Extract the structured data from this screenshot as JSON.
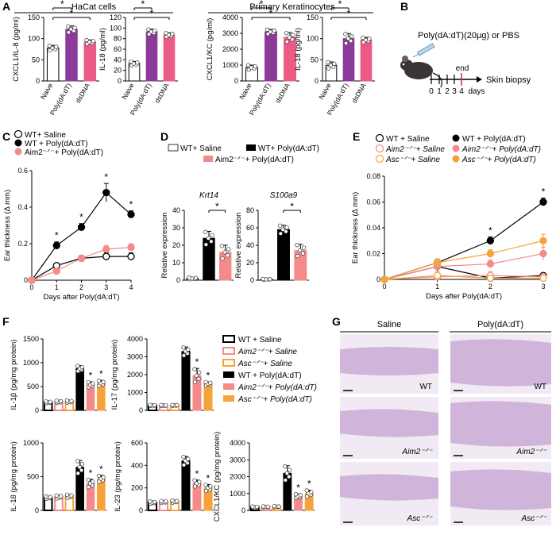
{
  "colors": {
    "white": "#ffffff",
    "black": "#000000",
    "purple": "#8b3a9a",
    "pink": "#ec5a86",
    "salmon": "#f48a8a",
    "orange": "#f6a33a",
    "tissue": "#c9a6d2",
    "tissue_bg": "#f1e9f3"
  },
  "panel_labels": {
    "a": "A",
    "b": "B",
    "c": "C",
    "d": "D",
    "e": "E",
    "f": "F",
    "g": "G"
  },
  "panel_a": {
    "hacat_title": "HaCat cells",
    "primary_title": "Primary Keratinocytes",
    "groups": [
      "Naive",
      "Poly(dA:dT)",
      "dsDNA"
    ]
  },
  "panel_b": {
    "treatment": "Poly(dA:dT)(20μg) or PBS",
    "end_label": "end",
    "days": [
      "0",
      "1",
      "2",
      "3",
      "4"
    ],
    "days_unit": "days",
    "outcome": "Skin biopsy"
  },
  "panel_c": {
    "legend": [
      "WT+ Saline",
      "WT + Poly(dA:dT)",
      "Aim2⁻ᐟ⁻+ Poly(dA:dT)"
    ],
    "xlabel": "Days after Poly(dA:dT)",
    "ylabel": "Ear thickness (Δ mm)"
  },
  "panel_d": {
    "legend": [
      "WT+ Saline",
      "WT+ Poly(dA:dT)",
      "Aim2⁻ᐟ⁻+ Poly(dA:dT)"
    ],
    "ylabel": "Relative expression"
  },
  "panel_e": {
    "legend": [
      "WT + Saline",
      "WT + Poly(dA:dT)",
      "Aim2⁻ᐟ⁻+ Saline",
      "Aim2⁻ᐟ⁻+ Poly(dA:dT)",
      "Asc⁻ᐟ⁻+ Saline",
      "Asc⁻ᐟ⁻+ Poly(dA:dT)"
    ],
    "xlabel": "Days after Poly(dA:dT)",
    "ylabel": "Ear thickness (Δ mm)"
  },
  "panel_f": {
    "legend": [
      "WT + Saline",
      "Aim2⁻ᐟ⁻+ Saline",
      "Asc⁻ᐟ⁻+ Saline",
      "WT + Poly(dA:dT)",
      "Aim2⁻ᐟ⁻+ Poly(dA:dT)",
      "Asc⁻ᐟ⁻+ Poly(dA:dT)"
    ]
  },
  "panel_g": {
    "col_headers": [
      "Saline",
      "Poly(dA:dT)"
    ],
    "labels": [
      [
        "WT",
        "WT"
      ],
      [
        "Aim2⁻ᐟ⁻",
        "Aim2⁻ᐟ⁻"
      ],
      [
        "Asc⁻ᐟ⁻",
        "Asc⁻ᐟ⁻"
      ]
    ]
  },
  "chart_data": [
    {
      "id": "A1",
      "type": "bar",
      "title": "",
      "ylabel": "CXCL1/IL-8 (pg/ml)",
      "ylim": [
        0,
        150
      ],
      "yticks": [
        0,
        50,
        100,
        150
      ],
      "categories": [
        "Naive",
        "Poly(dA:dT)",
        "dsDNA"
      ],
      "values": [
        78,
        122,
        92
      ],
      "errors": [
        6,
        8,
        5
      ],
      "colors": [
        "white",
        "purple",
        "pink"
      ],
      "sig": [
        {
          "from": 0,
          "to": 1,
          "label": "*"
        },
        {
          "from": 0,
          "to": 2,
          "label": "*"
        }
      ]
    },
    {
      "id": "A2",
      "type": "bar",
      "title": "",
      "ylabel": "IL-18 (pg/ml)",
      "ylim": [
        0,
        120
      ],
      "yticks": [
        0,
        20,
        40,
        60,
        80,
        100,
        120
      ],
      "categories": [
        "Naive",
        "Poly(dA:dT)",
        "dsDNA"
      ],
      "values": [
        33,
        93,
        87
      ],
      "errors": [
        4,
        5,
        4
      ],
      "colors": [
        "white",
        "purple",
        "pink"
      ],
      "sig": [
        {
          "from": 0,
          "to": 1,
          "label": "*"
        },
        {
          "from": 0,
          "to": 2,
          "label": "*"
        }
      ]
    },
    {
      "id": "A3",
      "type": "bar",
      "title": "",
      "ylabel": "CXCL1/KC (pg/ml)",
      "ylim": [
        0,
        4000
      ],
      "yticks": [
        0,
        1000,
        2000,
        3000,
        4000
      ],
      "categories": [
        "Naive",
        "Poly(dA:dT)",
        "dsDNA"
      ],
      "values": [
        850,
        3100,
        2750
      ],
      "errors": [
        150,
        150,
        300
      ],
      "colors": [
        "white",
        "purple",
        "pink"
      ],
      "sig": [
        {
          "from": 0,
          "to": 1,
          "label": "*"
        },
        {
          "from": 0,
          "to": 2,
          "label": "*"
        }
      ]
    },
    {
      "id": "A4",
      "type": "bar",
      "title": "",
      "ylabel": "IL-18 (pg/ml)",
      "ylim": [
        0,
        150
      ],
      "yticks": [
        0,
        50,
        100,
        150
      ],
      "categories": [
        "Naive",
        "Poly(dA:dT)",
        "dsDNA"
      ],
      "values": [
        37,
        100,
        97
      ],
      "errors": [
        8,
        12,
        6
      ],
      "colors": [
        "white",
        "purple",
        "pink"
      ],
      "sig": [
        {
          "from": 0,
          "to": 1,
          "label": "*"
        },
        {
          "from": 0,
          "to": 2,
          "label": "*"
        }
      ]
    },
    {
      "id": "C",
      "type": "line",
      "xlabel": "Days after Poly(dA:dT)",
      "ylabel": "Ear thickness (Δ mm)",
      "x": [
        0,
        1,
        2,
        3,
        4
      ],
      "xlim": [
        0,
        4
      ],
      "ylim": [
        0,
        0.6
      ],
      "yticks": [
        0,
        0.2,
        0.4,
        0.6
      ],
      "series": [
        {
          "name": "WT+ Saline",
          "values": [
            0,
            0.08,
            0.12,
            0.13,
            0.13
          ],
          "errors": [
            0,
            0.01,
            0.01,
            0.02,
            0.02
          ],
          "style": "open"
        },
        {
          "name": "WT + Poly(dA:dT)",
          "values": [
            0,
            0.19,
            0.29,
            0.48,
            0.36
          ],
          "errors": [
            0,
            0.02,
            0.02,
            0.05,
            0.02
          ],
          "style": "black"
        },
        {
          "name": "Aim2⁻ᐟ⁻+ Poly(dA:dT)",
          "values": [
            0,
            0.05,
            0.12,
            0.17,
            0.18
          ],
          "errors": [
            0,
            0.01,
            0.01,
            0.02,
            0.02
          ],
          "style": "salmon"
        }
      ],
      "stars": [
        1,
        2,
        3,
        4
      ]
    },
    {
      "id": "D1",
      "type": "bar",
      "title": "Krt14",
      "ylabel": "Relative expression",
      "ylim": [
        0,
        40
      ],
      "yticks": [
        0,
        10,
        20,
        30,
        40
      ],
      "values": [
        1,
        24,
        16
      ],
      "errors": [
        0.5,
        4,
        4
      ],
      "colors": [
        "white",
        "black",
        "salmon"
      ],
      "sig": [
        {
          "from": 1,
          "to": 2,
          "label": "*"
        }
      ]
    },
    {
      "id": "D2",
      "type": "bar",
      "title": "S100a9",
      "ylabel": "Relative expression",
      "ylim": [
        0,
        80
      ],
      "yticks": [
        0,
        20,
        40,
        60,
        80
      ],
      "values": [
        1,
        58,
        34
      ],
      "errors": [
        0.5,
        5,
        7
      ],
      "colors": [
        "white",
        "black",
        "salmon"
      ],
      "sig": [
        {
          "from": 1,
          "to": 2,
          "label": "*"
        }
      ]
    },
    {
      "id": "E",
      "type": "line",
      "xlabel": "Days after Poly(dA:dT)",
      "ylabel": "Ear thickness (Δ mm)",
      "x": [
        0,
        1,
        2,
        3
      ],
      "xlim": [
        0,
        3
      ],
      "ylim": [
        0,
        0.08
      ],
      "yticks": [
        0,
        0.02,
        0.04,
        0.06,
        0.08
      ],
      "series": [
        {
          "name": "WT + Saline",
          "values": [
            0,
            0.01,
            0.001,
            0.003
          ],
          "errors": [
            0,
            0.005,
            0.003,
            0.002
          ],
          "style": "open"
        },
        {
          "name": "WT + Poly(dA:dT)",
          "values": [
            0,
            0.013,
            0.03,
            0.06
          ],
          "errors": [
            0,
            0.003,
            0.003,
            0.003
          ],
          "style": "black"
        },
        {
          "name": "Aim2⁻ᐟ⁻+ Saline",
          "values": [
            0,
            0.002,
            0.003,
            0.002
          ],
          "errors": [
            0,
            0.003,
            0.003,
            0.002
          ],
          "style": "open-salmon"
        },
        {
          "name": "Aim2⁻ᐟ⁻+ Poly(dA:dT)",
          "values": [
            0,
            0.01,
            0.012,
            0.02
          ],
          "errors": [
            0,
            0.003,
            0.003,
            0.005
          ],
          "style": "salmon"
        },
        {
          "name": "Asc⁻ᐟ⁻+ Saline",
          "values": [
            0,
            0.003,
            0.001,
            0.001
          ],
          "errors": [
            0,
            0.003,
            0.002,
            0.002
          ],
          "style": "open-orange"
        },
        {
          "name": "Asc⁻ᐟ⁻+ Poly(dA:dT)",
          "values": [
            0,
            0.013,
            0.02,
            0.03
          ],
          "errors": [
            0,
            0.003,
            0.003,
            0.005
          ],
          "style": "orange"
        }
      ],
      "stars": [
        2,
        3
      ]
    },
    {
      "id": "F1",
      "type": "bar",
      "ylabel": "IL-1β (pg/mg protein)",
      "ylim": [
        0,
        1500
      ],
      "yticks": [
        0,
        500,
        1000,
        1500
      ],
      "values": [
        170,
        180,
        185,
        880,
        540,
        570
      ],
      "errors": [
        20,
        25,
        25,
        60,
        60,
        60
      ],
      "styles": [
        "w-k",
        "w-salmon",
        "w-orange",
        "black",
        "salmon",
        "orange"
      ],
      "stars": [
        4,
        5
      ]
    },
    {
      "id": "F2",
      "type": "bar",
      "ylabel": "IL-17 (pg/mg protein)",
      "ylim": [
        0,
        4000
      ],
      "yticks": [
        0,
        1000,
        2000,
        3000,
        4000
      ],
      "values": [
        280,
        270,
        280,
        3300,
        1950,
        1500
      ],
      "errors": [
        30,
        30,
        30,
        250,
        400,
        100
      ],
      "styles": [
        "w-k",
        "w-salmon",
        "w-orange",
        "black",
        "salmon",
        "orange"
      ],
      "stars": [
        4,
        5
      ]
    },
    {
      "id": "F3",
      "type": "bar",
      "ylabel": "IL-18 (pg/mg protein)",
      "ylim": [
        0,
        1000
      ],
      "yticks": [
        0,
        500,
        1000
      ],
      "values": [
        190,
        200,
        210,
        640,
        400,
        470
      ],
      "errors": [
        20,
        25,
        25,
        100,
        60,
        50
      ],
      "styles": [
        "w-k",
        "w-salmon",
        "w-orange",
        "black",
        "salmon",
        "orange"
      ],
      "stars": [
        4,
        5
      ]
    },
    {
      "id": "F4",
      "type": "bar",
      "ylabel": "IL-23 (pg/mg protein)",
      "ylim": [
        0,
        600
      ],
      "yticks": [
        0,
        200,
        400,
        600
      ],
      "values": [
        70,
        75,
        78,
        440,
        240,
        200
      ],
      "errors": [
        10,
        10,
        10,
        40,
        30,
        30
      ],
      "styles": [
        "w-k",
        "w-salmon",
        "w-orange",
        "black",
        "salmon",
        "orange"
      ],
      "stars": [
        4,
        5
      ]
    },
    {
      "id": "F5",
      "type": "bar",
      "ylabel": "CXCL1/KC (pg/mg protein)",
      "ylim": [
        0,
        4000
      ],
      "yticks": [
        0,
        1000,
        2000,
        3000,
        4000
      ],
      "values": [
        200,
        210,
        220,
        2200,
        850,
        1000
      ],
      "errors": [
        30,
        30,
        30,
        450,
        120,
        200
      ],
      "styles": [
        "w-k",
        "w-salmon",
        "w-orange",
        "black",
        "salmon",
        "orange"
      ],
      "stars": [
        4,
        5
      ]
    }
  ]
}
